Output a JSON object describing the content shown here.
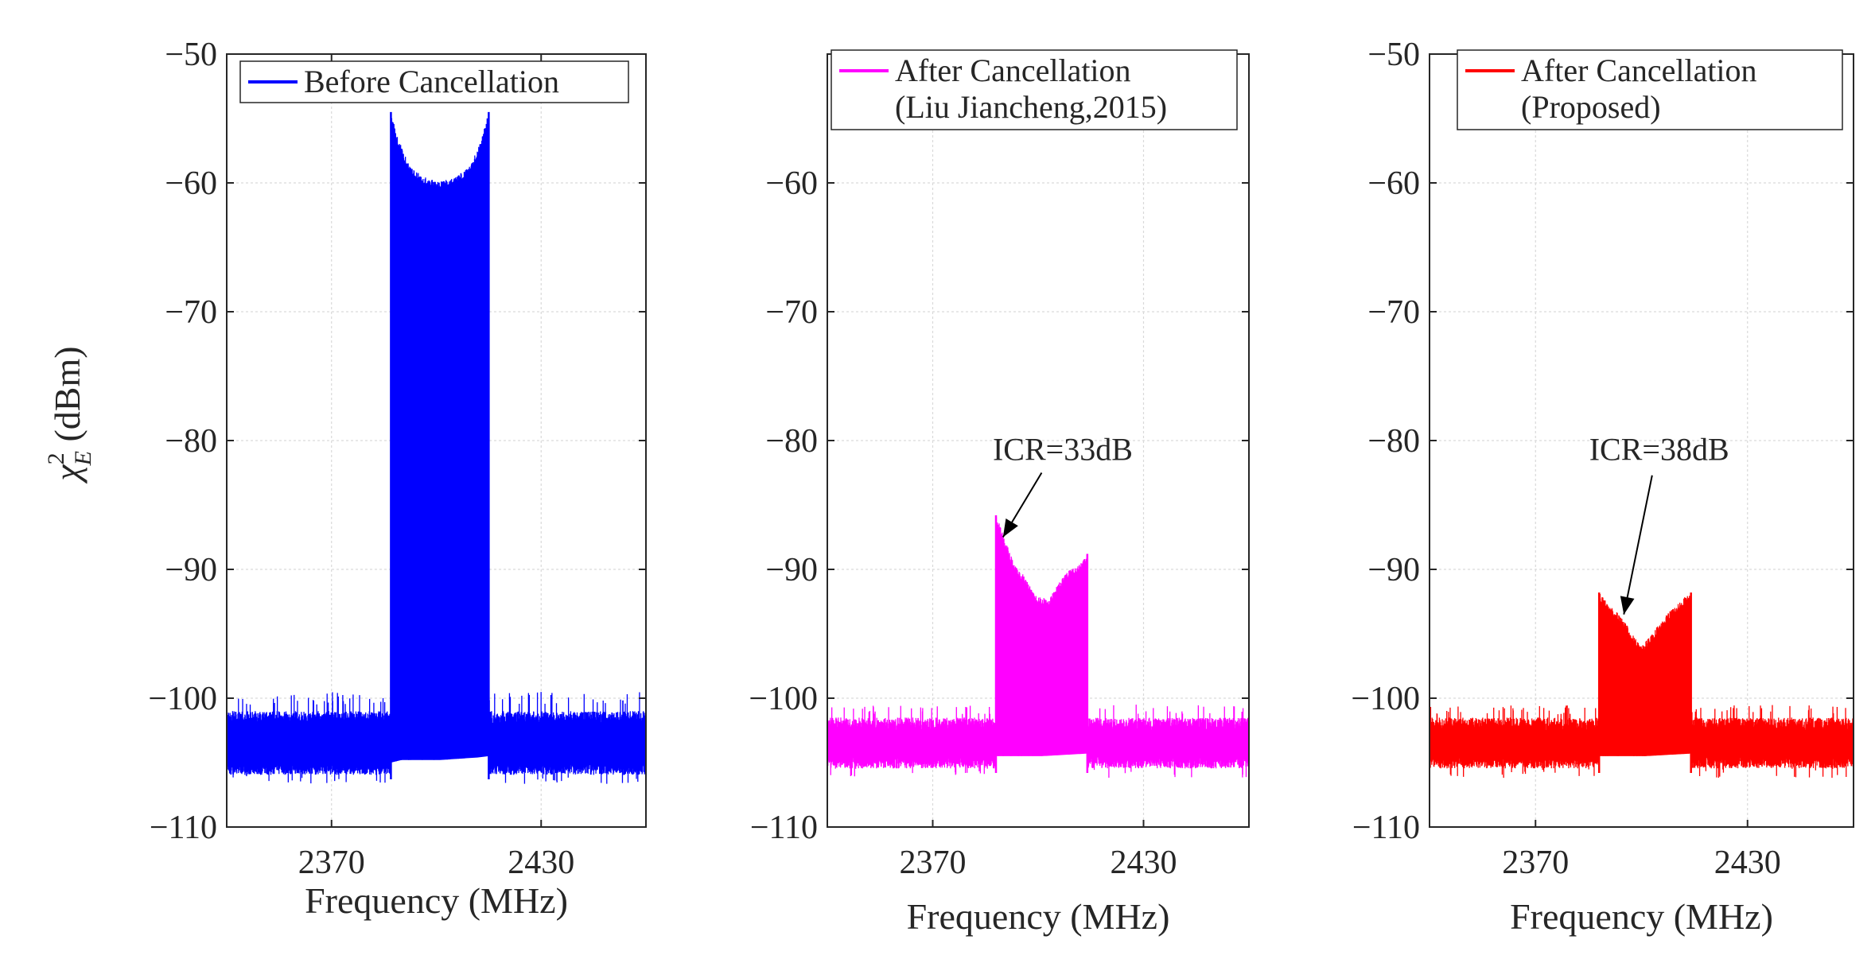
{
  "ylabel_main": "χ",
  "ylabel_sup": "2",
  "ylabel_sub": "E",
  "ylabel_unit": " (dBm)",
  "chart_data": [
    {
      "type": "line",
      "title": "",
      "xlabel": "Frequency (MHz)",
      "ylabel": "χ²_E (dBm)",
      "xlim": [
        2340,
        2460
      ],
      "ylim": [
        -110,
        -50
      ],
      "xticks": [
        2370,
        2430
      ],
      "xtick_labels": [
        "2370",
        "2430"
      ],
      "yticks": [
        -110,
        -100,
        -90,
        -80,
        -70,
        -60,
        -50
      ],
      "ytick_labels": [
        "−110",
        "−100",
        "−90",
        "−80",
        "−70",
        "−60",
        "−50"
      ],
      "grid": true,
      "legend": {
        "entries": [
          "Before Cancellation"
        ],
        "placement": "top-right"
      },
      "series": [
        {
          "name": "Before Cancellation",
          "color": "#0000ff",
          "noise_floor": {
            "upper": -101.5,
            "lower": -105.5,
            "peaks_to": -99.5
          },
          "band": {
            "start": 2387,
            "end": 2415
          },
          "upper_envelope": [
            [
              2387,
              -54.5
            ],
            [
              2389,
              -56.5
            ],
            [
              2392,
              -58.5
            ],
            [
              2396,
              -59.5
            ],
            [
              2401,
              -59.8
            ],
            [
              2406,
              -59.5
            ],
            [
              2410,
              -58.5
            ],
            [
              2413,
              -56.5
            ],
            [
              2415,
              -54.5
            ]
          ],
          "lower_envelope": [
            [
              2387,
              -105
            ],
            [
              2390,
              -104.8
            ],
            [
              2401,
              -104.8
            ],
            [
              2412,
              -104.6
            ],
            [
              2415,
              -104.5
            ]
          ]
        }
      ],
      "annotations": []
    },
    {
      "type": "line",
      "title": "",
      "xlabel": "Frequency (MHz)",
      "ylabel": "",
      "xlim": [
        2340,
        2460
      ],
      "ylim": [
        -110,
        -50
      ],
      "xticks": [
        2370,
        2430
      ],
      "xtick_labels": [
        "2370",
        "2430"
      ],
      "yticks": [
        -110,
        -100,
        -90,
        -80,
        -70,
        -60
      ],
      "ytick_labels": [
        "−110",
        "−100",
        "−90",
        "−80",
        "−70",
        "−60"
      ],
      "grid": true,
      "legend": {
        "entries": [
          "After Cancellation",
          "(Liu Jiancheng,2015)"
        ],
        "placement": "top-right"
      },
      "series": [
        {
          "name": "After Cancellation (Liu Jiancheng,2015)",
          "color": "#ff00ff",
          "noise_floor": {
            "upper": -102,
            "lower": -105,
            "peaks_to": -100.5
          },
          "band": {
            "start": 2388,
            "end": 2414
          },
          "upper_envelope": [
            [
              2388,
              -85.8
            ],
            [
              2390,
              -87.2
            ],
            [
              2393,
              -89.5
            ],
            [
              2396,
              -90.5
            ],
            [
              2399,
              -92
            ],
            [
              2403,
              -92.3
            ],
            [
              2406,
              -91
            ],
            [
              2409,
              -90
            ],
            [
              2412,
              -89.5
            ],
            [
              2414,
              -88.8
            ]
          ],
          "lower_envelope": [
            [
              2388,
              -104.5
            ],
            [
              2401,
              -104.5
            ],
            [
              2414,
              -104.3
            ]
          ]
        }
      ],
      "annotations": [
        {
          "text": "ICR=33dB",
          "text_at": [
            2407,
            -81.5
          ],
          "arrow_from": [
            2401,
            -82.5
          ],
          "arrow_to": [
            2390,
            -87.5
          ]
        }
      ]
    },
    {
      "type": "line",
      "title": "",
      "xlabel": "Frequency (MHz)",
      "ylabel": "",
      "xlim": [
        2340,
        2460
      ],
      "ylim": [
        -110,
        -50
      ],
      "xticks": [
        2370,
        2430
      ],
      "xtick_labels": [
        "2370",
        "2430"
      ],
      "yticks": [
        -110,
        -100,
        -90,
        -80,
        -70,
        -60,
        -50
      ],
      "ytick_labels": [
        "−110",
        "−100",
        "−90",
        "−80",
        "−70",
        "−60",
        "−50"
      ],
      "grid": true,
      "legend": {
        "entries": [
          "After Cancellation",
          "(Proposed)"
        ],
        "placement": "top-right"
      },
      "series": [
        {
          "name": "After Cancellation (Proposed)",
          "color": "#ff0000",
          "noise_floor": {
            "upper": -102,
            "lower": -105,
            "peaks_to": -100.5
          },
          "band": {
            "start": 2388,
            "end": 2414
          },
          "upper_envelope": [
            [
              2388,
              -91.8
            ],
            [
              2391,
              -92.8
            ],
            [
              2394,
              -93.5
            ],
            [
              2397,
              -94.8
            ],
            [
              2400,
              -96
            ],
            [
              2403,
              -95
            ],
            [
              2406,
              -93.8
            ],
            [
              2409,
              -93
            ],
            [
              2412,
              -92.2
            ],
            [
              2414,
              -91.8
            ]
          ],
          "lower_envelope": [
            [
              2388,
              -104.5
            ],
            [
              2401,
              -104.5
            ],
            [
              2414,
              -104.3
            ]
          ]
        }
      ],
      "annotations": [
        {
          "text": "ICR=38dB",
          "text_at": [
            2405,
            -81.5
          ],
          "arrow_from": [
            2403,
            -82.7
          ],
          "arrow_to": [
            2395,
            -93.5
          ]
        }
      ]
    }
  ]
}
